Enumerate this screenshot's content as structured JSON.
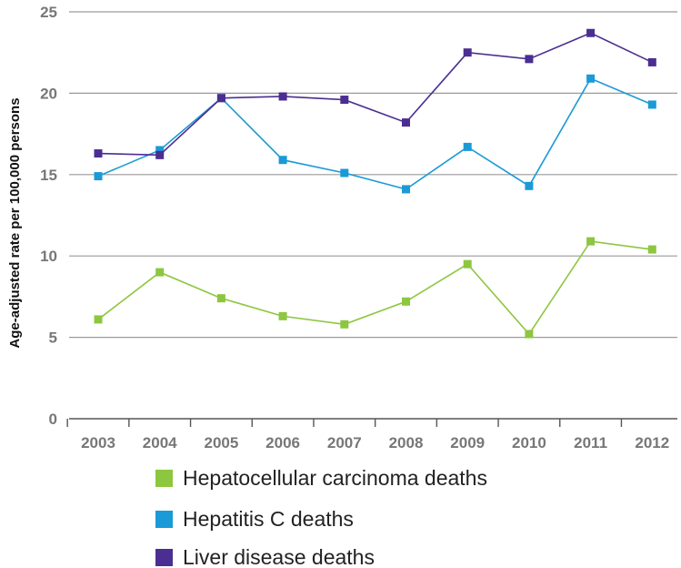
{
  "chart_data": {
    "type": "line",
    "title": "",
    "xlabel": "",
    "ylabel": "Age-adjusted rate per 100,000 persons",
    "categories": [
      "2003",
      "2004",
      "2005",
      "2006",
      "2007",
      "2008",
      "2009",
      "2010",
      "2011",
      "2012"
    ],
    "ylim": [
      0,
      25
    ],
    "yticks": [
      "0",
      "5",
      "10",
      "15",
      "20",
      "25"
    ],
    "grid": true,
    "legend_position": "bottom",
    "series": [
      {
        "name": "Hepatocellular carcinoma deaths",
        "color": "#8dc63f",
        "values": [
          6.1,
          9.0,
          7.4,
          6.3,
          5.8,
          7.2,
          9.5,
          5.2,
          10.9,
          10.4
        ]
      },
      {
        "name": "Hepatitis C deaths",
        "color": "#1a9ad6",
        "values": [
          14.9,
          16.5,
          19.7,
          15.9,
          15.1,
          14.1,
          16.7,
          14.3,
          20.9,
          19.3
        ]
      },
      {
        "name": "Liver disease deaths",
        "color": "#4b2e91",
        "values": [
          16.3,
          16.2,
          19.7,
          19.8,
          19.6,
          18.2,
          22.5,
          22.1,
          23.7,
          21.9
        ]
      }
    ]
  }
}
